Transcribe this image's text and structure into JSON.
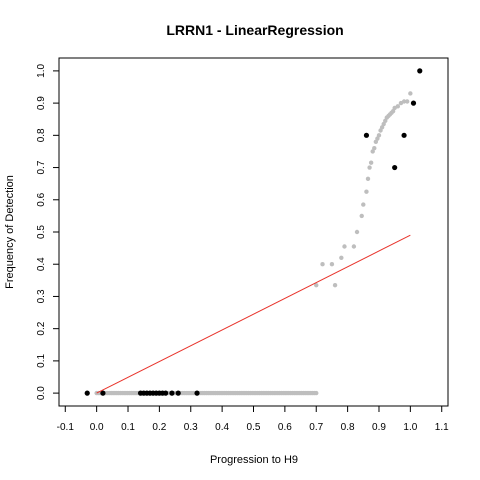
{
  "chart_data": {
    "type": "scatter",
    "title": "LRRN1 - LinearRegression",
    "xlabel": "Progression to H9",
    "ylabel": "Frequency of Detection",
    "xlim": [
      -0.12,
      1.12
    ],
    "ylim": [
      -0.04,
      1.04
    ],
    "x_ticks": [
      "-0.1",
      "0.0",
      "0.1",
      "0.2",
      "0.3",
      "0.4",
      "0.5",
      "0.6",
      "0.7",
      "0.8",
      "0.9",
      "1.0",
      "1.1"
    ],
    "y_ticks": [
      "0.0",
      "0.1",
      "0.2",
      "0.3",
      "0.4",
      "0.5",
      "0.6",
      "0.7",
      "0.8",
      "0.9",
      "1.0"
    ],
    "grid": false,
    "colors": {
      "observed": "#000000",
      "smoothed": "#bebebe",
      "fit": "#e8332b"
    },
    "series": [
      {
        "kind": "points",
        "color": "#bebebe",
        "points": [
          [
            0.0,
            0.0
          ],
          [
            0.7,
            0.0
          ],
          [
            0.7,
            0.335
          ],
          [
            0.72,
            0.4
          ],
          [
            0.75,
            0.4
          ],
          [
            0.76,
            0.335
          ],
          [
            0.78,
            0.42
          ],
          [
            0.79,
            0.455
          ],
          [
            0.82,
            0.455
          ],
          [
            0.83,
            0.5
          ],
          [
            0.845,
            0.55
          ],
          [
            0.85,
            0.585
          ],
          [
            0.86,
            0.625
          ],
          [
            0.865,
            0.665
          ],
          [
            0.87,
            0.7
          ],
          [
            0.875,
            0.715
          ],
          [
            0.88,
            0.75
          ],
          [
            0.885,
            0.76
          ],
          [
            0.89,
            0.78
          ],
          [
            0.895,
            0.79
          ],
          [
            0.9,
            0.8
          ],
          [
            0.905,
            0.815
          ],
          [
            0.91,
            0.825
          ],
          [
            0.915,
            0.835
          ],
          [
            0.92,
            0.845
          ],
          [
            0.925,
            0.855
          ],
          [
            0.93,
            0.86
          ],
          [
            0.935,
            0.865
          ],
          [
            0.94,
            0.87
          ],
          [
            0.945,
            0.875
          ],
          [
            0.95,
            0.885
          ],
          [
            0.96,
            0.89
          ],
          [
            0.97,
            0.9
          ],
          [
            0.98,
            0.905
          ],
          [
            0.99,
            0.905
          ],
          [
            1.0,
            0.93
          ]
        ]
      },
      {
        "kind": "points",
        "color": "#000000",
        "points": [
          [
            -0.03,
            0.0
          ],
          [
            0.02,
            0.0
          ],
          [
            0.14,
            0.0
          ],
          [
            0.15,
            0.0
          ],
          [
            0.16,
            0.0
          ],
          [
            0.17,
            0.0
          ],
          [
            0.18,
            0.0
          ],
          [
            0.19,
            0.0
          ],
          [
            0.2,
            0.0
          ],
          [
            0.21,
            0.0
          ],
          [
            0.22,
            0.0
          ],
          [
            0.24,
            0.0
          ],
          [
            0.26,
            0.0
          ],
          [
            0.32,
            0.0
          ],
          [
            0.86,
            0.8
          ],
          [
            0.95,
            0.7
          ],
          [
            0.98,
            0.8
          ],
          [
            1.01,
            0.9
          ],
          [
            1.03,
            1.0
          ]
        ]
      },
      {
        "kind": "line",
        "color": "#e8332b",
        "x": [
          0.0,
          1.0
        ],
        "y": [
          0.0,
          0.49
        ]
      }
    ]
  }
}
